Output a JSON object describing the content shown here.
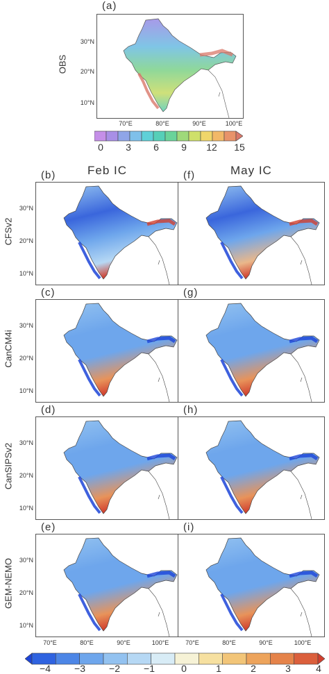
{
  "obs": {
    "panel_label": "(a)",
    "row_label": "OBS",
    "lat_ticks": [
      "30°N",
      "20°N",
      "10°N"
    ],
    "lon_ticks": [
      "70°E",
      "80°E",
      "90°E",
      "100°E"
    ]
  },
  "obs_colorbar": {
    "ticks": [
      "0",
      "3",
      "6",
      "9",
      "12",
      "15"
    ],
    "colors": [
      "#c58fe8",
      "#a88fe6",
      "#8fa5e8",
      "#7fc0ea",
      "#5fd0d8",
      "#56cfb8",
      "#6ad39a",
      "#9fd97a",
      "#cfe06a",
      "#f0d66a",
      "#f2b868",
      "#e8936a",
      "#d9786a"
    ]
  },
  "columns": [
    "Feb IC",
    "May IC"
  ],
  "rows": [
    {
      "model": "CFSv2",
      "left": "(b)",
      "right": "(f)"
    },
    {
      "model": "CanCM4i",
      "left": "(c)",
      "right": "(g)"
    },
    {
      "model": "CanSIPSv2",
      "left": "(d)",
      "right": "(h)"
    },
    {
      "model": "GEM-NEMO",
      "left": "(e)",
      "right": "(i)"
    }
  ],
  "lat_ticks": [
    "30°N",
    "20°N",
    "10°N"
  ],
  "lon_ticks": [
    "70°E",
    "80°E",
    "90°E",
    "100°E"
  ],
  "bias_colorbar": {
    "ticks": [
      "−4",
      "−3",
      "−2",
      "−1",
      "0",
      "1",
      "2",
      "3",
      "4"
    ],
    "colors": [
      "#1d45d8",
      "#2f63e0",
      "#4d86e6",
      "#6ea6ec",
      "#93c2f0",
      "#b6d8f4",
      "#d8ecf6",
      "#f6f2d6",
      "#f6e0a0",
      "#f2c578",
      "#eda45c",
      "#e5834a",
      "#db5f3c",
      "#d1402f"
    ]
  }
}
